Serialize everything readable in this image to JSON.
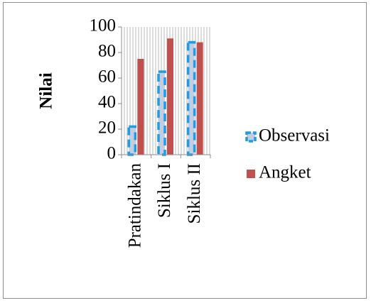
{
  "chart_data": {
    "type": "bar",
    "categories": [
      "Pratindakan",
      "Siklus I",
      "Siklus II"
    ],
    "series": [
      {
        "name": "Observasi",
        "values": [
          22,
          65,
          88
        ]
      },
      {
        "name": "Angket",
        "values": [
          75,
          91,
          88
        ]
      }
    ],
    "title": "",
    "xlabel": "",
    "ylabel": "Nilai",
    "ylim": [
      0,
      100
    ],
    "yticks": [
      0,
      20,
      40,
      60,
      80,
      100
    ],
    "grid": "vertical lines",
    "legend": "right",
    "colors": {
      "observasi_fill": "#c3cde2",
      "observasi_border": "#1f9ce6",
      "angket": "#c0504d",
      "grid": "#b9b9b9",
      "frame": "#8c8c8c"
    }
  }
}
